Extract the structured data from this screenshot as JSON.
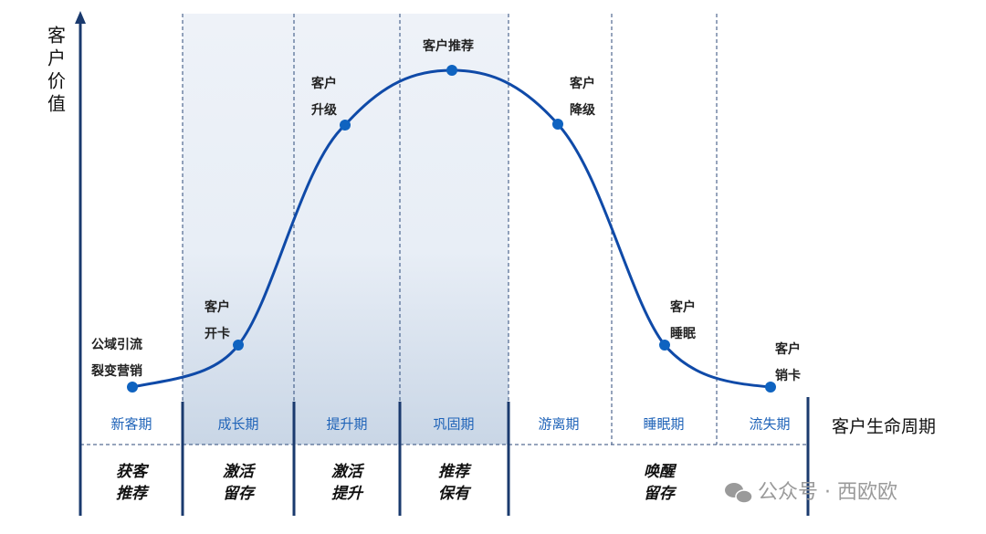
{
  "axis": {
    "y_label": "客户价值",
    "x_label": "客户生命周期"
  },
  "phases": [
    "新客期",
    "成长期",
    "提升期",
    "巩固期",
    "游离期",
    "睡眠期",
    "流失期"
  ],
  "points": [
    {
      "lines": [
        "公域引流",
        "裂变营销"
      ]
    },
    {
      "lines": [
        "客户",
        "开卡"
      ]
    },
    {
      "lines": [
        "客户",
        "升级"
      ]
    },
    {
      "lines": [
        "客户推荐"
      ]
    },
    {
      "lines": [
        "客户",
        "降级"
      ]
    },
    {
      "lines": [
        "客户",
        "睡眠"
      ]
    },
    {
      "lines": [
        "客户",
        "销卡"
      ]
    }
  ],
  "strategies": [
    {
      "lines": [
        "获客",
        "推荐"
      ]
    },
    {
      "lines": [
        "激活",
        "留存"
      ]
    },
    {
      "lines": [
        "激活",
        "提升"
      ]
    },
    {
      "lines": [
        "推荐",
        "保有"
      ]
    },
    {
      "lines": [
        "唤醒",
        "留存"
      ]
    }
  ],
  "watermark": "公众号 · 西欧欧"
}
